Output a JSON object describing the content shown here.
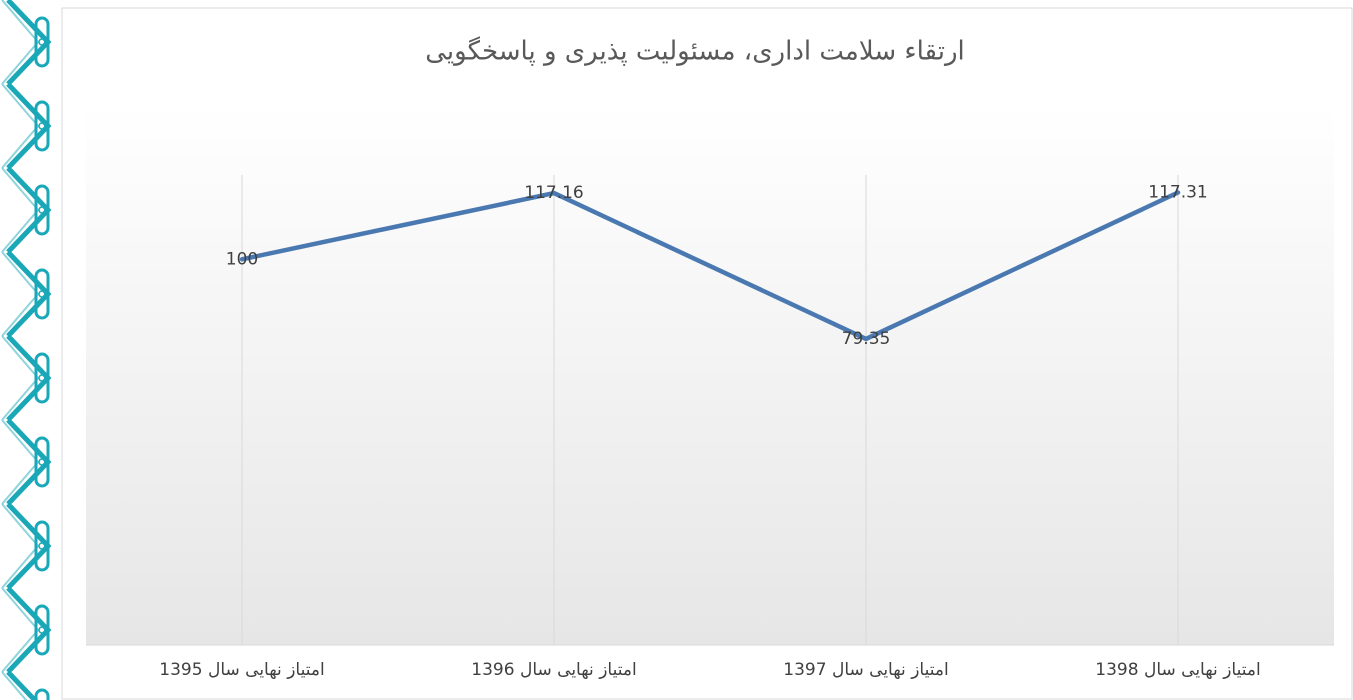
{
  "chart_data": {
    "type": "line",
    "title": "ارتقاء سلامت اداری، مسئولیت پذیری و پاسخگویی",
    "categories": [
      "امتیاز نهایی سال 1395",
      "امتیاز نهایی سال 1396",
      "امتیاز نهایی سال 1397",
      "امتیاز نهایی سال 1398"
    ],
    "series": [
      {
        "color": "#4a78b0",
        "values": [
          100,
          117.16,
          79.35,
          117.31
        ]
      }
    ],
    "ylim": [
      0,
      140
    ],
    "grid": true
  }
}
